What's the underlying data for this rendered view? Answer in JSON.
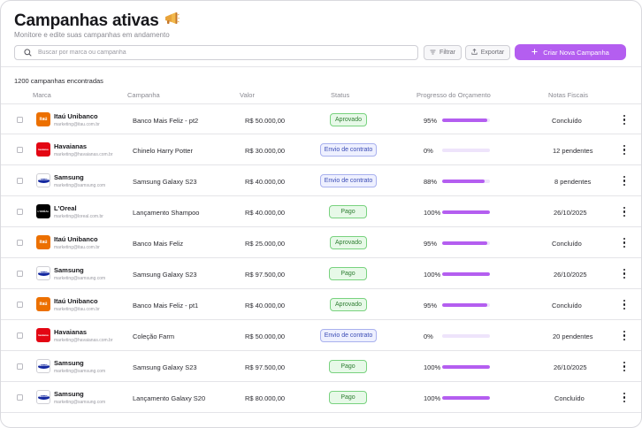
{
  "header": {
    "title": "Campanhas ativas",
    "title_icon": "megaphone-icon",
    "subtitle": "Monitore e edite suas campanhas em andamento"
  },
  "toolbar": {
    "search_placeholder": "Buscar por marca ou campanha",
    "search_value": "",
    "filter_label": "Filtrar",
    "export_label": "Exportar",
    "new_label": "Criar Nova Campanha"
  },
  "results_count": "1200 campanhas encontradas",
  "columns": {
    "marca": "Marca",
    "campanha": "Campanha",
    "valor": "Valor",
    "status": "Status",
    "progresso": "Progresso do Orçamento",
    "notas": "Notas Fiscais"
  },
  "colors": {
    "accent": "#b45ef0",
    "status_green": "#2e7d32",
    "status_blue": "#3a4bb4"
  },
  "rows": [
    {
      "logo": "itau",
      "logo_text": "itaú",
      "brand": "Itaú Unibanco",
      "email": "marketing@itau.com.br",
      "campaign": "Banco Mais Feliz - pt2",
      "value": "R$ 50.000,00",
      "status": "Aprovado",
      "status_type": "green",
      "progress_label": "95%",
      "progress": 0.95,
      "notes": "Concluído"
    },
    {
      "logo": "hav",
      "logo_text": "havaianas",
      "brand": "Havaianas",
      "email": "marketing@havaianas.com.br",
      "campaign": "Chinelo Harry Potter",
      "value": "R$ 30.000,00",
      "status": "Envio de contrato",
      "status_type": "blue",
      "progress_label": "0%",
      "progress": 0,
      "notes": "12 pendentes"
    },
    {
      "logo": "sam",
      "logo_text": "SAMSUNG",
      "brand": "Samsung",
      "email": "marketing@samsung.com",
      "campaign": "Samsung Galaxy S23",
      "value": "R$ 40.000,00",
      "status": "Envio de contrato",
      "status_type": "blue",
      "progress_label": "88%",
      "progress": 0.88,
      "notes": "8 pendentes"
    },
    {
      "logo": "lor",
      "logo_text": "L'ORÉAL",
      "brand": "L'Oreal",
      "email": "marketing@loreal.com.br",
      "campaign": "Lançamento Shampoo",
      "value": "R$ 40.000,00",
      "status": "Pago",
      "status_type": "green",
      "progress_label": "100%",
      "progress": 1,
      "notes": "26/10/2025"
    },
    {
      "logo": "itau",
      "logo_text": "itaú",
      "brand": "Itaú Unibanco",
      "email": "marketing@itau.com.br",
      "campaign": "Banco Mais Feliz",
      "value": "R$ 25.000,00",
      "status": "Aprovado",
      "status_type": "green",
      "progress_label": "95%",
      "progress": 0.95,
      "notes": "Concluído"
    },
    {
      "logo": "sam",
      "logo_text": "SAMSUNG",
      "brand": "Samsung",
      "email": "marketing@samsung.com",
      "campaign": "Samsung Galaxy S23",
      "value": "R$ 97.500,00",
      "status": "Pago",
      "status_type": "green",
      "progress_label": "100%",
      "progress": 1,
      "notes": "26/10/2025"
    },
    {
      "logo": "itau",
      "logo_text": "itaú",
      "brand": "Itaú Unibanco",
      "email": "marketing@itau.com.br",
      "campaign": "Banco Mais Feliz - pt1",
      "value": "R$ 40.000,00",
      "status": "Aprovado",
      "status_type": "green",
      "progress_label": "95%",
      "progress": 0.95,
      "notes": "Concluído"
    },
    {
      "logo": "hav",
      "logo_text": "havaianas",
      "brand": "Havaianas",
      "email": "marketing@havaianas.com.br",
      "campaign": "Coleção Farm",
      "value": "R$ 50.000,00",
      "status": "Envio de contrato",
      "status_type": "blue",
      "progress_label": "0%",
      "progress": 0,
      "notes": "20 pendentes"
    },
    {
      "logo": "sam",
      "logo_text": "SAMSUNG",
      "brand": "Samsung",
      "email": "marketing@samsung.com",
      "campaign": "Samsung Galaxy S23",
      "value": "R$ 97.500,00",
      "status": "Pago",
      "status_type": "green",
      "progress_label": "100%",
      "progress": 1,
      "notes": "26/10/2025"
    },
    {
      "logo": "sam",
      "logo_text": "SAMSUNG",
      "brand": "Samsung",
      "email": "marketing@samsung.com",
      "campaign": "Lançamento Galaxy S20",
      "value": "R$ 80.000,00",
      "status": "Pago",
      "status_type": "green",
      "progress_label": "100%",
      "progress": 1,
      "notes": "Concluído"
    }
  ]
}
